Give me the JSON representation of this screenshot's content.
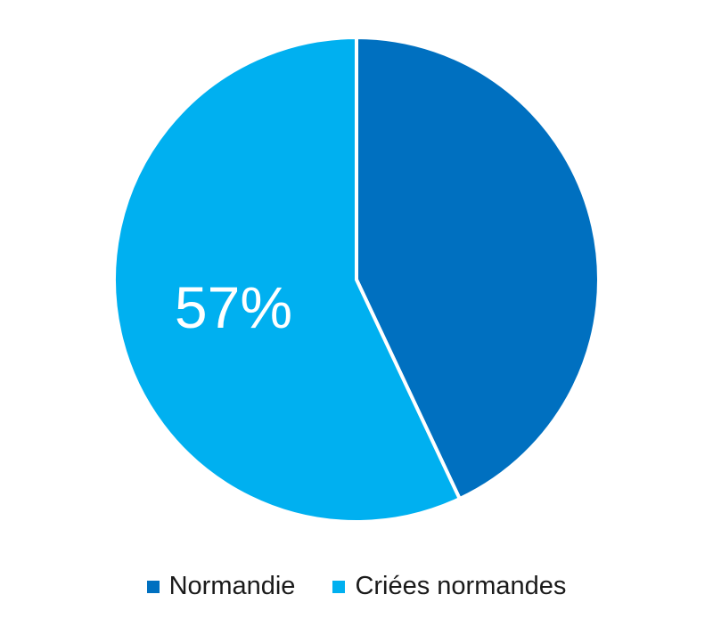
{
  "chart_data": {
    "type": "pie",
    "title": "",
    "start_angle_deg": 0,
    "direction": "clockwise",
    "slices": [
      {
        "label": "Normandie",
        "value": 43,
        "color": "#0070C0"
      },
      {
        "label": "Criées normandes",
        "value": 57,
        "color": "#00B0F0",
        "data_label": "57%"
      }
    ],
    "legend": {
      "position": "bottom",
      "items": [
        {
          "label": "Normandie",
          "color": "#0070C0"
        },
        {
          "label": "Criées normandes",
          "color": "#00B0F0"
        }
      ]
    }
  }
}
